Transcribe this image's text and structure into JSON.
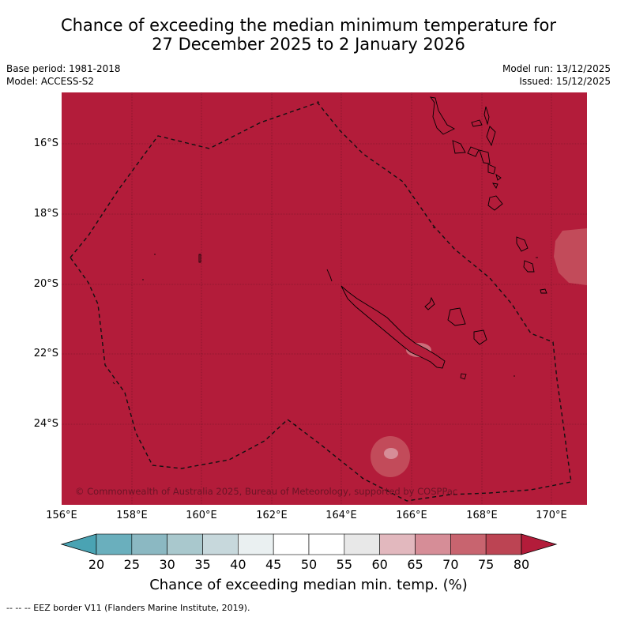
{
  "title": {
    "line1": "Chance of exceeding the median minimum temperature for",
    "line2": "27 December 2025 to 2 January 2026"
  },
  "meta": {
    "base_period": "Base period: 1981-2018",
    "model": "Model: ACCESS-S2",
    "model_run": "Model run: 13/12/2025",
    "issued": "Issued: 15/12/2025"
  },
  "map": {
    "background_color": "#b31c3a",
    "copyright": "© Commonwealth of Australia 2025, Bureau of Meteorology, supported by COSPPac",
    "lon_labels": [
      "156°E",
      "158°E",
      "160°E",
      "162°E",
      "164°E",
      "166°E",
      "168°E",
      "170°E"
    ],
    "lat_labels": [
      "16°S",
      "18°S",
      "20°S",
      "22°S",
      "24°S"
    ]
  },
  "colorbar": {
    "ticks": [
      "20",
      "25",
      "30",
      "35",
      "40",
      "45",
      "50",
      "55",
      "60",
      "65",
      "70",
      "75",
      "80"
    ],
    "colors": [
      "#6aafbd",
      "#8bb8c2",
      "#a9c8cd",
      "#c7d8dc",
      "#eaf0f1",
      "#ffffff",
      "#ffffff",
      "#e8e8e8",
      "#e2b8be",
      "#d68d97",
      "#c8646f",
      "#bc4453"
    ],
    "under_color": "#4aa3b3",
    "over_color": "#b31c3a",
    "label": "Chance of exceeding median min. temp. (%)"
  },
  "footnote": "--  --  -- EEZ border V11 (Flanders Marine Institute, 2019)."
}
